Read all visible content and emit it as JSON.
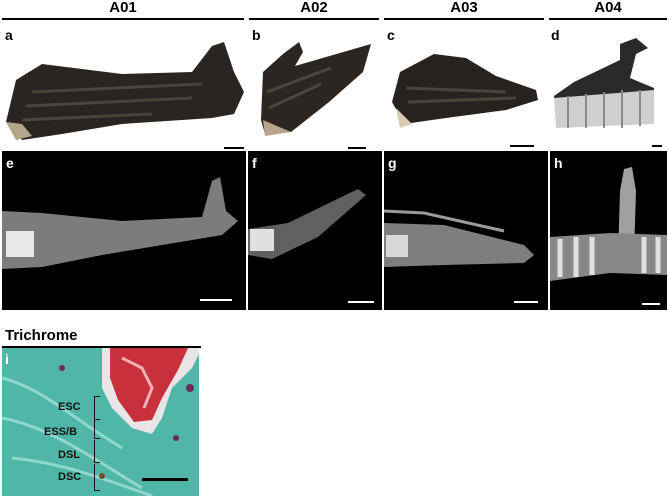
{
  "columns": [
    {
      "id": "A01"
    },
    {
      "id": "A02"
    },
    {
      "id": "A03"
    },
    {
      "id": "A04"
    }
  ],
  "panels": {
    "a": "a",
    "b": "b",
    "c": "c",
    "d": "d",
    "e": "e",
    "f": "f",
    "g": "g",
    "h": "h",
    "i": "i"
  },
  "histology": {
    "stain": "Trichrome",
    "layers": [
      "ESC",
      "ESS/B",
      "DSL",
      "DSC"
    ],
    "colors": {
      "keratin": "#c8303c",
      "tissue": "#4fb6a8",
      "nuclei": "#6b2a5a"
    }
  }
}
